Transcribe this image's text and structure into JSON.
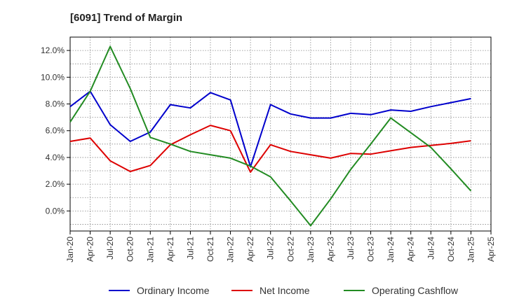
{
  "chart_data": {
    "type": "line",
    "title": "[6091]  Trend of Margin",
    "xlabel": "",
    "ylabel": "",
    "x": [
      "Jan-20",
      "Apr-20",
      "Jul-20",
      "Oct-20",
      "Jan-21",
      "Apr-21",
      "Jul-21",
      "Oct-21",
      "Jan-22",
      "Apr-22",
      "Jul-22",
      "Oct-22",
      "Jan-23",
      "Apr-23",
      "Jul-23",
      "Oct-23",
      "Jan-24",
      "Apr-24",
      "Jul-24",
      "Oct-24",
      "Jan-25",
      "Apr-25"
    ],
    "y_ticks": [
      "12.0%",
      "10.0%",
      "8.0%",
      "6.0%",
      "4.0%",
      "2.0%",
      "0.0%"
    ],
    "y_tick_values": [
      12,
      10,
      8,
      6,
      4,
      2,
      0
    ],
    "ylim": [
      -1.5,
      13
    ],
    "grid": true,
    "legend_position": "bottom",
    "series": [
      {
        "name": "Ordinary Income",
        "color": "#0000cc",
        "values": [
          7.8,
          8.95,
          6.45,
          5.2,
          5.9,
          7.95,
          7.7,
          8.85,
          8.3,
          3.3,
          7.95,
          7.25,
          6.95,
          6.95,
          7.3,
          7.2,
          7.55,
          7.45,
          7.8,
          8.1,
          8.4,
          null
        ]
      },
      {
        "name": "Net Income",
        "color": "#dd0000",
        "values": [
          5.2,
          5.45,
          3.75,
          2.95,
          3.4,
          4.95,
          5.7,
          6.4,
          6.0,
          2.9,
          4.95,
          4.45,
          4.2,
          3.95,
          4.3,
          4.25,
          4.5,
          4.75,
          4.9,
          5.05,
          5.25,
          null
        ]
      },
      {
        "name": "Operating Cashflow",
        "color": "#228b22",
        "values": [
          6.65,
          8.95,
          12.3,
          9.15,
          5.5,
          5.0,
          4.45,
          4.2,
          3.95,
          3.35,
          2.55,
          0.75,
          -1.1,
          0.9,
          3.1,
          5.0,
          6.95,
          5.85,
          4.75,
          3.15,
          1.5,
          null
        ]
      }
    ]
  }
}
